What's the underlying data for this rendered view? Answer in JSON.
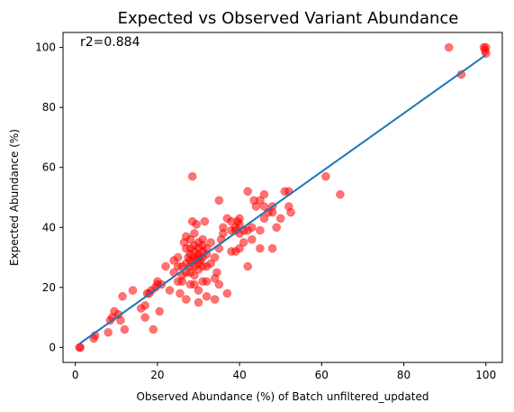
{
  "chart_data": {
    "type": "scatter",
    "title": "Expected vs Observed Variant Abundance",
    "xlabel": "Observed Abundance (%) of Batch unfiltered_updated",
    "ylabel": "Expected Abundance (%)",
    "xlim": [
      -3,
      104
    ],
    "ylim": [
      -5,
      105
    ],
    "xticks": [
      0,
      20,
      40,
      60,
      80,
      100
    ],
    "yticks": [
      0,
      20,
      40,
      60,
      80,
      100
    ],
    "grid": false,
    "annotation": "r2=0.884",
    "point_color": "#ff0000",
    "line_color": "#1f77b4",
    "fit_line": {
      "x": [
        1,
        100
      ],
      "y": [
        1.2,
        97.5
      ]
    },
    "points": [
      [
        1,
        0
      ],
      [
        1.2,
        0
      ],
      [
        4.5,
        3
      ],
      [
        4.8,
        4
      ],
      [
        8,
        5
      ],
      [
        8.5,
        9
      ],
      [
        9,
        10
      ],
      [
        9.5,
        12
      ],
      [
        11,
        9
      ],
      [
        10.5,
        11
      ],
      [
        12,
        6
      ],
      [
        11.5,
        17
      ],
      [
        14,
        19
      ],
      [
        16,
        13
      ],
      [
        17,
        10
      ],
      [
        17,
        14
      ],
      [
        17.5,
        18
      ],
      [
        18,
        18
      ],
      [
        18.5,
        19
      ],
      [
        19,
        6
      ],
      [
        19.5,
        20
      ],
      [
        20,
        21
      ],
      [
        20,
        22
      ],
      [
        20.5,
        12
      ],
      [
        21,
        21
      ],
      [
        22,
        27
      ],
      [
        23,
        19
      ],
      [
        24,
        25
      ],
      [
        24,
        29
      ],
      [
        25,
        22
      ],
      [
        25,
        27
      ],
      [
        25,
        30
      ],
      [
        25.5,
        18
      ],
      [
        26,
        22
      ],
      [
        26,
        24
      ],
      [
        26,
        27
      ],
      [
        26.5,
        35
      ],
      [
        27,
        16
      ],
      [
        27,
        25
      ],
      [
        27,
        28
      ],
      [
        27,
        33
      ],
      [
        27,
        37
      ],
      [
        27.5,
        30
      ],
      [
        28,
        21
      ],
      [
        28,
        25
      ],
      [
        28,
        27
      ],
      [
        28,
        29
      ],
      [
        28,
        31
      ],
      [
        28,
        33
      ],
      [
        28,
        36
      ],
      [
        28.5,
        57
      ],
      [
        28.5,
        42
      ],
      [
        29,
        21
      ],
      [
        29,
        24
      ],
      [
        29,
        27
      ],
      [
        29,
        29
      ],
      [
        29,
        30
      ],
      [
        29,
        32
      ],
      [
        29,
        34
      ],
      [
        29,
        38
      ],
      [
        29.5,
        41
      ],
      [
        30,
        15
      ],
      [
        30,
        19
      ],
      [
        30,
        26
      ],
      [
        30,
        28
      ],
      [
        30,
        30
      ],
      [
        30,
        31
      ],
      [
        30,
        33
      ],
      [
        30,
        35
      ],
      [
        30.5,
        29
      ],
      [
        31,
        22
      ],
      [
        31,
        27
      ],
      [
        31,
        30
      ],
      [
        31,
        32
      ],
      [
        31,
        34
      ],
      [
        31,
        36
      ],
      [
        31.5,
        42
      ],
      [
        32,
        17
      ],
      [
        32,
        22
      ],
      [
        32,
        27
      ],
      [
        32,
        31
      ],
      [
        32,
        33
      ],
      [
        33,
        28
      ],
      [
        33,
        35
      ],
      [
        34,
        16
      ],
      [
        34,
        23
      ],
      [
        34,
        30
      ],
      [
        34.5,
        25
      ],
      [
        35,
        21
      ],
      [
        35,
        33
      ],
      [
        35,
        49
      ],
      [
        35.5,
        36
      ],
      [
        36,
        38
      ],
      [
        36,
        40
      ],
      [
        37,
        18
      ],
      [
        37,
        43
      ],
      [
        38,
        42
      ],
      [
        38,
        39
      ],
      [
        38,
        32
      ],
      [
        39,
        32
      ],
      [
        39,
        39
      ],
      [
        39,
        40
      ],
      [
        39.5,
        42
      ],
      [
        40,
        33
      ],
      [
        40,
        38
      ],
      [
        40,
        43
      ],
      [
        40,
        41
      ],
      [
        41,
        35
      ],
      [
        41,
        39
      ],
      [
        42,
        27
      ],
      [
        42,
        39
      ],
      [
        42,
        52
      ],
      [
        43,
        36
      ],
      [
        43,
        40
      ],
      [
        43.5,
        49
      ],
      [
        44,
        47
      ],
      [
        45,
        33
      ],
      [
        45,
        39
      ],
      [
        45,
        49
      ],
      [
        46,
        43
      ],
      [
        46,
        47
      ],
      [
        46,
        51
      ],
      [
        47,
        45
      ],
      [
        48,
        47
      ],
      [
        48,
        45
      ],
      [
        48,
        33
      ],
      [
        49,
        40
      ],
      [
        50,
        43
      ],
      [
        51,
        52
      ],
      [
        52,
        52
      ],
      [
        52,
        47
      ],
      [
        52.5,
        45
      ],
      [
        61,
        57
      ],
      [
        64.5,
        51
      ],
      [
        91,
        100
      ],
      [
        94,
        91
      ],
      [
        99.5,
        100
      ],
      [
        99.8,
        99
      ],
      [
        100,
        100
      ],
      [
        100,
        98
      ]
    ]
  }
}
